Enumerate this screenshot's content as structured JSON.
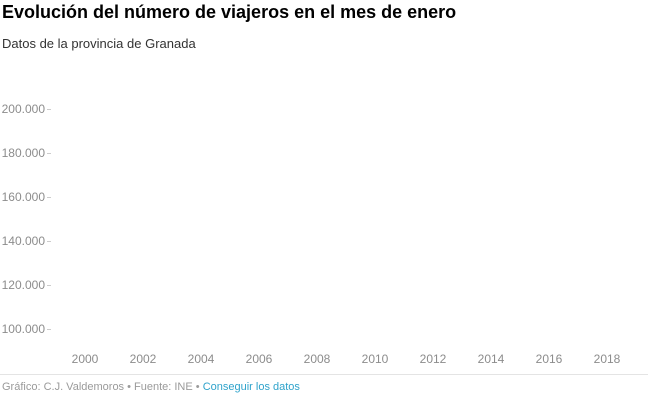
{
  "header": {
    "title": "Evolución del número de viajeros en el mes de enero",
    "subtitle": "Datos de la provincia de Granada"
  },
  "chart_data": {
    "type": "line",
    "title": "Evolución del número de viajeros en el mes de enero",
    "subtitle": "Datos de la provincia de Granada",
    "xlabel": "",
    "ylabel": "",
    "x_ticks": [
      "2000",
      "2002",
      "2004",
      "2006",
      "2008",
      "2010",
      "2012",
      "2014",
      "2016",
      "2018"
    ],
    "y_ticks": [
      "200.000",
      "180.000",
      "160.000",
      "140.000",
      "120.000",
      "100.000"
    ],
    "y_tick_values": [
      200000,
      180000,
      160000,
      140000,
      120000,
      100000
    ],
    "ylim": [
      100000,
      200000
    ],
    "xlim": [
      2000,
      2018
    ],
    "grid": false,
    "legend": false,
    "series": []
  },
  "footer": {
    "credit_prefix": "Gráfico: C.J. Valdemoros • Fuente: INE • ",
    "link_label": "Conseguir los datos"
  },
  "colors": {
    "background": "#ffffff",
    "title": "#000000",
    "subtitle": "#333333",
    "axis_label": "#8c8c8c",
    "tick_mark": "#cccccc",
    "divider": "#e4e4e4",
    "footer_text": "#9a9a9a",
    "link": "#2fa3cb"
  }
}
